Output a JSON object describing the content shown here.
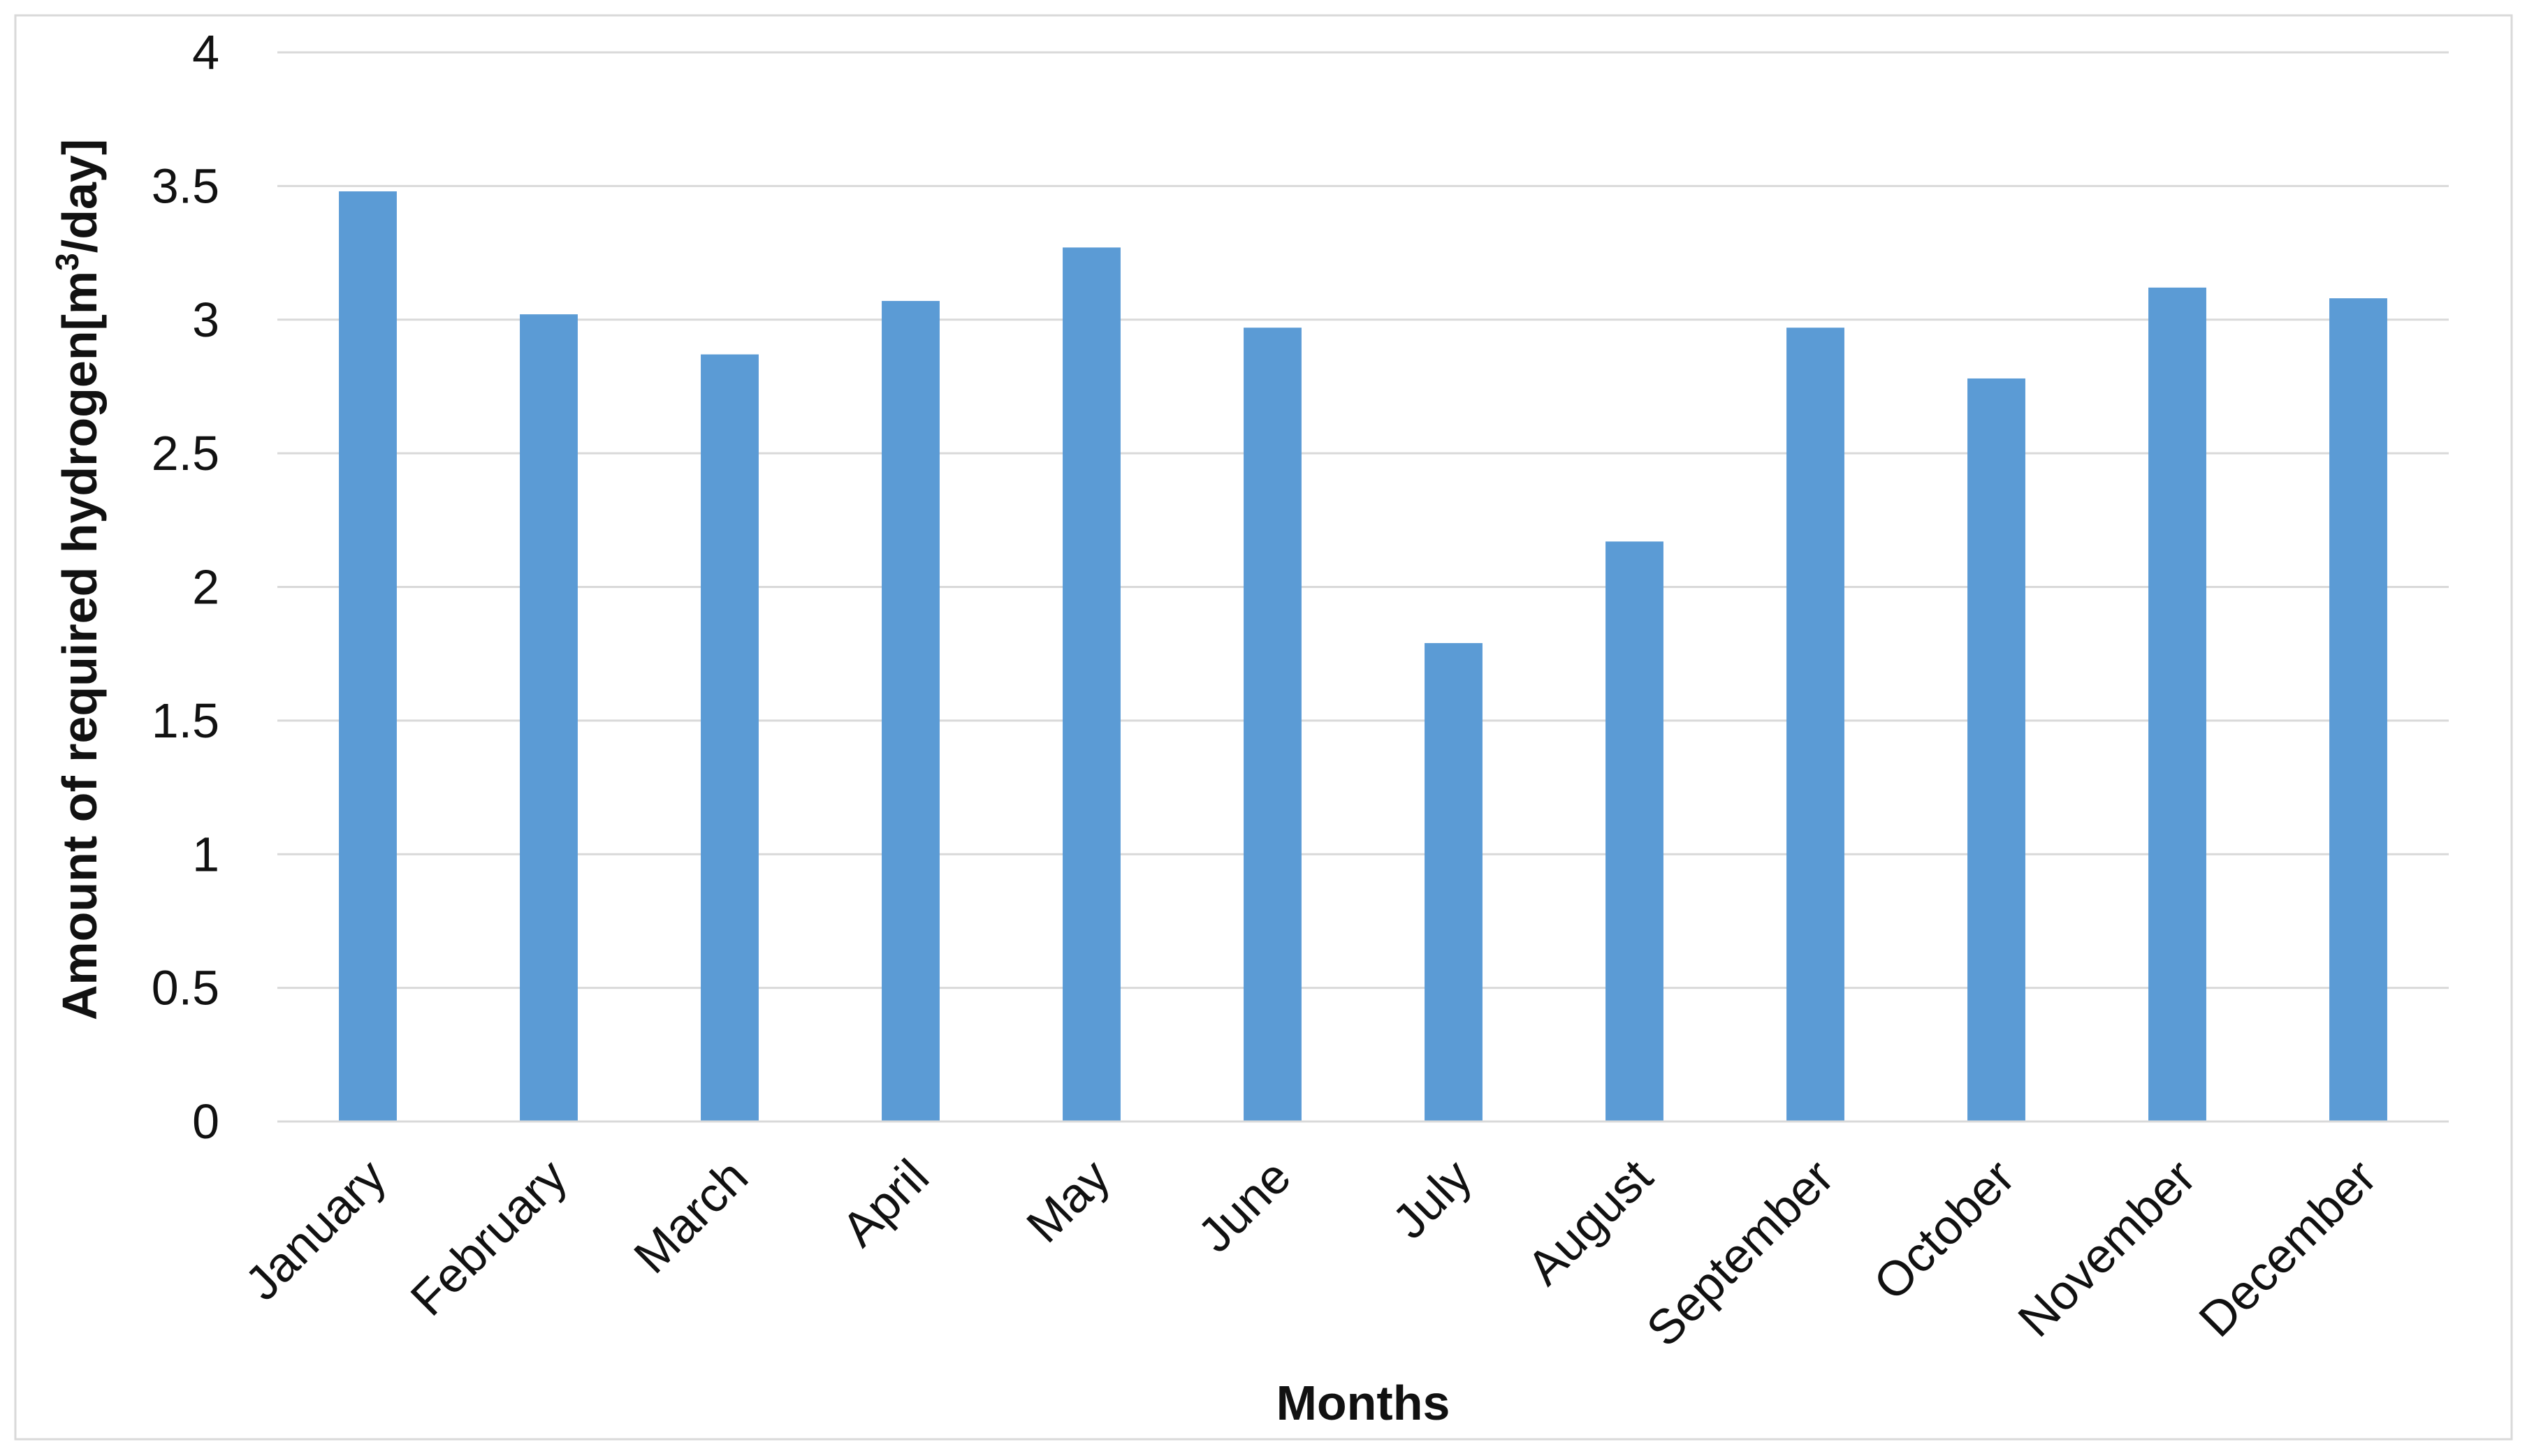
{
  "chart_data": {
    "type": "bar",
    "categories": [
      "January",
      "February",
      "March",
      "April",
      "May",
      "June",
      "July",
      "August",
      "September",
      "October",
      "November",
      "December"
    ],
    "values": [
      3.48,
      3.02,
      2.87,
      3.07,
      3.27,
      2.97,
      1.79,
      2.17,
      2.97,
      2.78,
      3.12,
      3.08
    ],
    "xlabel": "Months",
    "ylabel": {
      "before": "Amount of required hydrogen[m",
      "superscript": "3",
      "after": "/day]"
    },
    "ylim": [
      0,
      4
    ],
    "yticks": [
      "0",
      "0.5",
      "1",
      "1.5",
      "2",
      "2.5",
      "3",
      "3.5",
      "4"
    ],
    "grid": true,
    "legend": "none",
    "colors": {
      "bar": "#5b9bd5",
      "grid": "#d9d9d9",
      "frame": "#d9d9d9"
    }
  }
}
